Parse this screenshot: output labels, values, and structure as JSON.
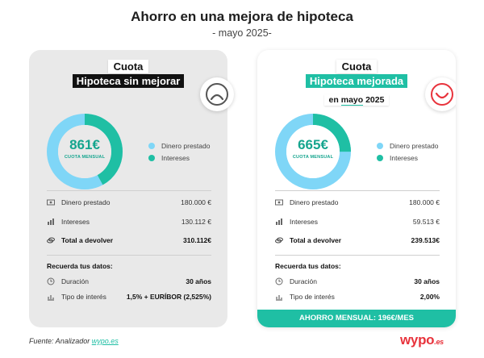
{
  "header": {
    "title": "Ahorro en una mejora de hipoteca",
    "subtitle": "- mayo 2025-"
  },
  "colors": {
    "teal": "#1fbfa4",
    "light_blue": "#7fd6f7",
    "red": "#e8333c",
    "dark": "#111111"
  },
  "cards": {
    "left": {
      "cuota_label": "Cuota",
      "tag": "Hipoteca sin mejorar",
      "face_icon": "sad-face-icon",
      "donut": {
        "value": "861€",
        "caption": "CUOTA MENSUAL",
        "dinero_fraction": 0.58,
        "intereses_fraction": 0.42
      },
      "legend": [
        "Dinero prestado",
        "Intereses"
      ],
      "rows": [
        {
          "label": "Dinero prestado",
          "value": "180.000 €",
          "icon": "money-bill-icon"
        },
        {
          "label": "Intereses",
          "value": "130.112 €",
          "icon": "bar-chart-icon"
        },
        {
          "label": "Total a devolver",
          "value": "310.112€",
          "icon": "coins-icon"
        }
      ],
      "datos_title": "Recuerda tus datos:",
      "datos": [
        {
          "label": "Duración",
          "value": "30 años",
          "icon": "clock-icon"
        },
        {
          "label": "Tipo de interés",
          "value": "1,5% + EURÍBOR (2,525%)",
          "icon": "chart-icon"
        }
      ]
    },
    "right": {
      "cuota_label": "Cuota",
      "tag": "Hipoteca mejorada",
      "date_prefix": "en",
      "date_month": "mayo",
      "date_year": "2025",
      "face_icon": "happy-face-icon",
      "donut": {
        "value": "665€",
        "caption": "CUOTA MENSUAL",
        "dinero_fraction": 0.75,
        "intereses_fraction": 0.25
      },
      "legend": [
        "Dinero prestado",
        "Intereses"
      ],
      "rows": [
        {
          "label": "Dinero prestado",
          "value": "180.000 €",
          "icon": "money-bill-icon"
        },
        {
          "label": "Intereses",
          "value": "59.513 €",
          "icon": "bar-chart-icon"
        },
        {
          "label": "Total a devolver",
          "value": "239.513€",
          "icon": "coins-icon"
        }
      ],
      "datos_title": "Recuerda tus datos:",
      "datos": [
        {
          "label": "Duración",
          "value": "30 años",
          "icon": "clock-icon"
        },
        {
          "label": "Tipo de interés",
          "value": "2,00%",
          "icon": "chart-icon"
        }
      ],
      "ahorro": "AHORRO MENSUAL: 196€/MES"
    }
  },
  "footer": {
    "fuente_prefix": "Fuente: Analizador",
    "fuente_link": "wypo.es",
    "logo": "wypo",
    "logo_suffix": ".es"
  }
}
